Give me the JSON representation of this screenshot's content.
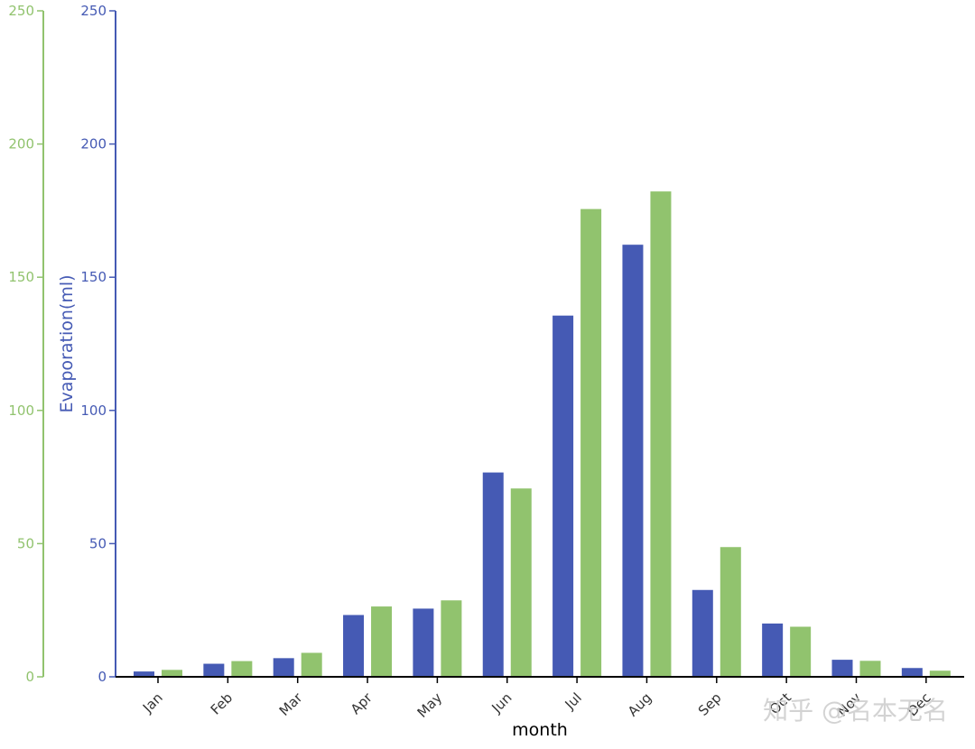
{
  "chart_data": {
    "type": "bar",
    "categories": [
      "Jan",
      "Feb",
      "Mar",
      "Apr",
      "May",
      "Jun",
      "Jul",
      "Aug",
      "Sep",
      "Oct",
      "Nov",
      "Dec"
    ],
    "series": [
      {
        "values": [
          2,
          4.9,
          7,
          23.2,
          25.6,
          76.7,
          135.6,
          162.2,
          32.6,
          20,
          6.4,
          3.3
        ]
      },
      {
        "values": [
          2.6,
          5.9,
          9,
          26.4,
          28.7,
          70.7,
          175.6,
          182.2,
          48.7,
          18.8,
          6,
          2.3
        ]
      }
    ],
    "xlabel": "month",
    "ylabel": "Evaporation(ml)",
    "ylim": [
      0,
      250
    ],
    "y2lim": [
      0,
      250
    ],
    "yticks": [
      0,
      50,
      100,
      150,
      200,
      250
    ],
    "grid": false,
    "legend": "none",
    "x_tick_rotation_deg": -45
  },
  "colors": {
    "series1": "#455ab4",
    "series2": "#91c36e",
    "left_axis": "#91c36e",
    "right_axis": "#455ab4",
    "baseline": "#000000"
  },
  "watermark": "知乎 @名本无名"
}
